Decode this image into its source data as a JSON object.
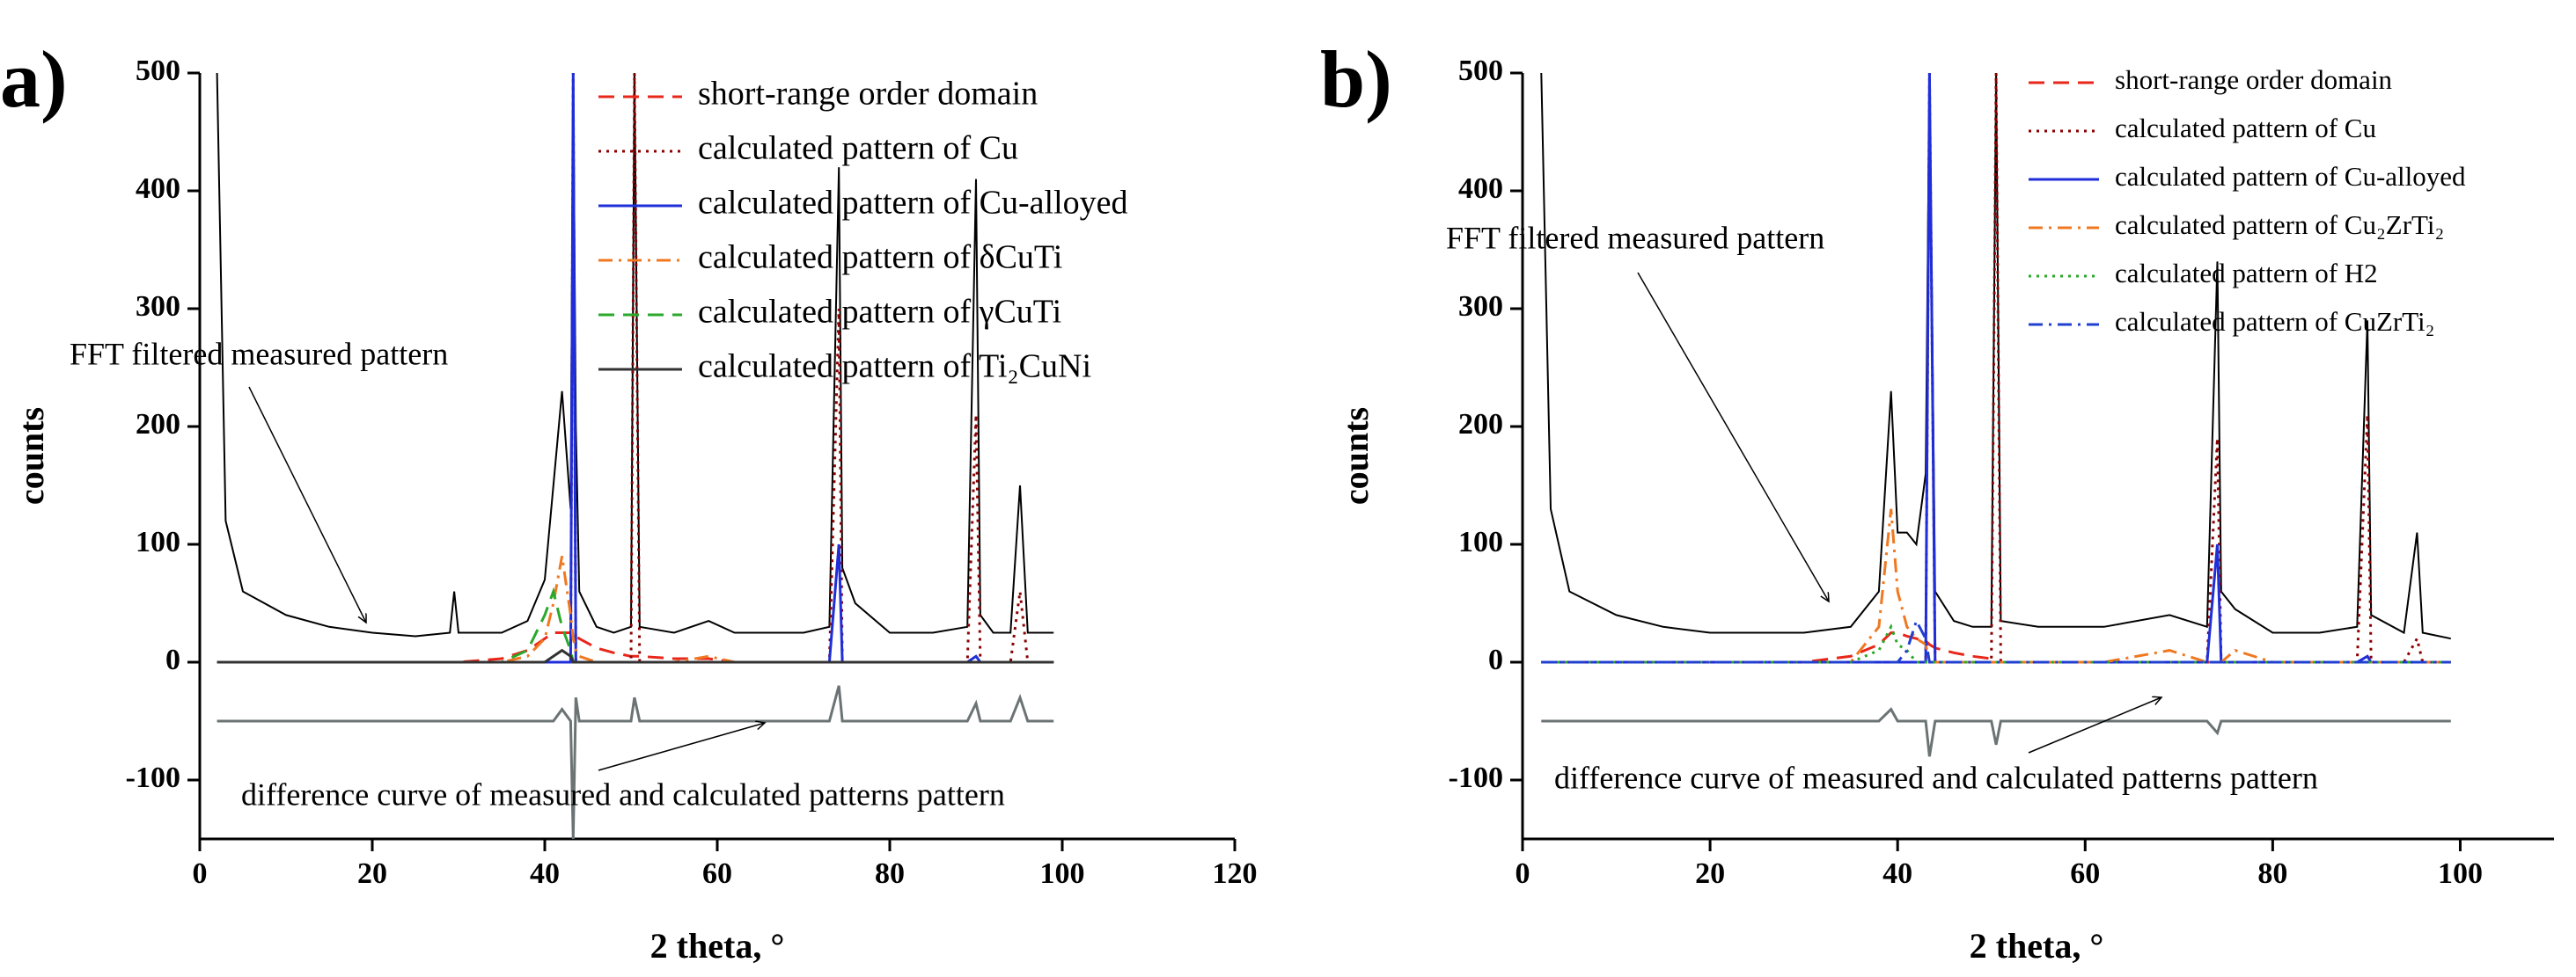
{
  "chart_data": [
    {
      "type": "line",
      "label": "a)",
      "xlabel": "2 theta, °",
      "ylabel": "counts",
      "xlim": [
        0,
        120
      ],
      "ylim": [
        -150,
        500
      ],
      "xticks": [
        0,
        20,
        40,
        60,
        80,
        100,
        120
      ],
      "yticks": [
        -100,
        0,
        100,
        200,
        300,
        400,
        500
      ],
      "legend": "upper right",
      "annotations": [
        "FFT filtered measured pattern",
        "difference curve of measured and calculated patterns pattern"
      ],
      "x": [
        2,
        3,
        5,
        10,
        15,
        20,
        25,
        29,
        29.5,
        30,
        35,
        38,
        40,
        41,
        42,
        43,
        43.3,
        43.6,
        44,
        46,
        48,
        50,
        50.4,
        51,
        55,
        59,
        62,
        65,
        70,
        73,
        74.1,
        74.5,
        76,
        80,
        85,
        89,
        90,
        90.5,
        92,
        94,
        95.1,
        96,
        99
      ],
      "measured": {
        "color": "#000000",
        "values": [
          500,
          120,
          60,
          40,
          30,
          25,
          22,
          25,
          60,
          25,
          25,
          35,
          70,
          150,
          230,
          130,
          500,
          200,
          60,
          30,
          25,
          30,
          500,
          30,
          25,
          35,
          25,
          25,
          25,
          30,
          420,
          80,
          50,
          25,
          25,
          30,
          410,
          40,
          25,
          25,
          150,
          25,
          25
        ]
      },
      "difference": {
        "color": "#6b7374",
        "values": [
          -50,
          -50,
          -50,
          -50,
          -50,
          -50,
          -50,
          -50,
          -50,
          -50,
          -50,
          -50,
          -50,
          -50,
          -40,
          -50,
          -150,
          -30,
          -50,
          -50,
          -50,
          -50,
          -30,
          -50,
          -50,
          -50,
          -50,
          -50,
          -50,
          -50,
          -20,
          -50,
          -50,
          -50,
          -50,
          -50,
          -35,
          -50,
          -50,
          -50,
          -30,
          -50,
          -50
        ]
      },
      "series": [
        {
          "name": "short-range order domain",
          "color": "#e8271a",
          "style": "dashed",
          "values": [
            0,
            0,
            0,
            0,
            0,
            0,
            0,
            0,
            0,
            0,
            3,
            10,
            20,
            25,
            25,
            25,
            25,
            22,
            20,
            12,
            8,
            5,
            5,
            5,
            3,
            3,
            0,
            0,
            0,
            0,
            0,
            0,
            0,
            0,
            0,
            0,
            0,
            0,
            0,
            0,
            0,
            0,
            0
          ]
        },
        {
          "name": "calculated pattern of Cu",
          "color": "#8b0000",
          "style": "dotted",
          "values": [
            0,
            0,
            0,
            0,
            0,
            0,
            0,
            0,
            0,
            0,
            0,
            0,
            0,
            0,
            0,
            0,
            500,
            0,
            0,
            0,
            0,
            0,
            500,
            0,
            0,
            0,
            0,
            0,
            0,
            0,
            300,
            0,
            0,
            0,
            0,
            0,
            210,
            0,
            0,
            0,
            60,
            0,
            0
          ]
        },
        {
          "name": "calculated pattern of Cu-alloyed",
          "color": "#1f2ed8",
          "style": "solid",
          "values": [
            0,
            0,
            0,
            0,
            0,
            0,
            0,
            0,
            0,
            0,
            0,
            0,
            0,
            0,
            0,
            0,
            500,
            0,
            0,
            0,
            0,
            0,
            0,
            0,
            0,
            0,
            0,
            0,
            0,
            0,
            100,
            0,
            0,
            0,
            0,
            0,
            5,
            0,
            0,
            0,
            0,
            0,
            0
          ]
        },
        {
          "name": "calculated pattern of δCuTi",
          "color": "#f07820",
          "style": "dashdot",
          "values": [
            0,
            0,
            0,
            0,
            0,
            0,
            0,
            0,
            0,
            0,
            0,
            5,
            20,
            50,
            90,
            40,
            20,
            10,
            5,
            0,
            0,
            0,
            0,
            0,
            0,
            5,
            0,
            0,
            0,
            0,
            0,
            0,
            0,
            0,
            0,
            0,
            0,
            0,
            0,
            0,
            0,
            0,
            0
          ]
        },
        {
          "name": "calculated pattern of γCuTi",
          "color": "#2aa82a",
          "style": "dashed",
          "values": [
            0,
            0,
            0,
            0,
            0,
            0,
            0,
            0,
            0,
            0,
            0,
            10,
            40,
            60,
            30,
            10,
            0,
            0,
            0,
            0,
            0,
            0,
            0,
            0,
            0,
            0,
            0,
            0,
            0,
            0,
            0,
            0,
            0,
            0,
            0,
            0,
            0,
            0,
            0,
            0,
            0,
            0,
            0
          ]
        },
        {
          "name": "calculated pattern of Ti₂CuNi",
          "color": "#333333",
          "style": "solid",
          "values": [
            0,
            0,
            0,
            0,
            0,
            0,
            0,
            0,
            0,
            0,
            0,
            0,
            0,
            5,
            10,
            5,
            0,
            0,
            0,
            0,
            0,
            0,
            0,
            0,
            0,
            0,
            0,
            0,
            0,
            0,
            0,
            0,
            0,
            0,
            0,
            0,
            0,
            0,
            0,
            0,
            0,
            0,
            0
          ]
        }
      ]
    },
    {
      "type": "line",
      "label": "b)",
      "xlabel": "2 theta, °",
      "ylabel": "counts",
      "xlim": [
        0,
        110
      ],
      "ylim": [
        -150,
        500
      ],
      "xticks": [
        0,
        20,
        40,
        60,
        80,
        100
      ],
      "yticks": [
        -100,
        0,
        100,
        200,
        300,
        400,
        500
      ],
      "legend": "upper right",
      "annotations": [
        "FFT filtered measured pattern",
        "difference curve of measured and calculated patterns pattern"
      ],
      "x": [
        2,
        3,
        5,
        10,
        15,
        20,
        25,
        30,
        35,
        38,
        39.3,
        40,
        41,
        42,
        43,
        43.4,
        44,
        46,
        48,
        50,
        50.5,
        51,
        55,
        62,
        69,
        73,
        74.1,
        74.5,
        76,
        80,
        85,
        89,
        90.1,
        90.5,
        94,
        95.4,
        96,
        99
      ],
      "measured": {
        "color": "#000000",
        "values": [
          500,
          130,
          60,
          40,
          30,
          25,
          25,
          25,
          30,
          60,
          230,
          110,
          110,
          100,
          160,
          500,
          60,
          35,
          30,
          30,
          500,
          35,
          30,
          30,
          40,
          30,
          340,
          60,
          45,
          25,
          25,
          30,
          290,
          40,
          25,
          110,
          25,
          20
        ]
      },
      "difference": {
        "color": "#6b7374",
        "values": [
          -50,
          -50,
          -50,
          -50,
          -50,
          -50,
          -50,
          -50,
          -50,
          -50,
          -40,
          -50,
          -50,
          -50,
          -50,
          -80,
          -50,
          -50,
          -50,
          -50,
          -70,
          -50,
          -50,
          -50,
          -50,
          -50,
          -60,
          -50,
          -50,
          -50,
          -50,
          -50,
          -50,
          -50,
          -50,
          -50,
          -50,
          -50
        ]
      },
      "series": [
        {
          "name": "short-range order domain",
          "color": "#e8271a",
          "style": "dashed",
          "values": [
            0,
            0,
            0,
            0,
            0,
            0,
            0,
            0,
            5,
            15,
            25,
            25,
            22,
            20,
            18,
            15,
            12,
            8,
            5,
            3,
            0,
            0,
            0,
            0,
            0,
            0,
            0,
            0,
            0,
            0,
            0,
            0,
            0,
            0,
            0,
            0,
            0,
            0
          ]
        },
        {
          "name": "calculated pattern of Cu",
          "color": "#8b0000",
          "style": "dotted",
          "values": [
            0,
            0,
            0,
            0,
            0,
            0,
            0,
            0,
            0,
            0,
            0,
            0,
            0,
            0,
            0,
            500,
            0,
            0,
            0,
            0,
            500,
            0,
            0,
            0,
            0,
            0,
            190,
            0,
            0,
            0,
            0,
            0,
            210,
            0,
            0,
            20,
            0,
            0
          ]
        },
        {
          "name": "calculated pattern of Cu-alloyed",
          "color": "#1f2ed8",
          "style": "solid",
          "values": [
            0,
            0,
            0,
            0,
            0,
            0,
            0,
            0,
            0,
            0,
            0,
            0,
            0,
            0,
            0,
            500,
            0,
            0,
            0,
            0,
            0,
            0,
            0,
            0,
            0,
            0,
            100,
            0,
            0,
            0,
            0,
            0,
            5,
            0,
            0,
            0,
            0,
            0
          ]
        },
        {
          "name": "calculated pattern of Cu₂ZrTi₂",
          "color": "#f07820",
          "style": "dashdot",
          "values": [
            0,
            0,
            0,
            0,
            0,
            0,
            0,
            0,
            0,
            30,
            130,
            60,
            30,
            20,
            15,
            0,
            0,
            0,
            0,
            0,
            0,
            0,
            0,
            0,
            10,
            0,
            0,
            0,
            10,
            0,
            0,
            0,
            0,
            0,
            0,
            0,
            0,
            0
          ]
        },
        {
          "name": "calculated pattern of H2",
          "color": "#2aa82a",
          "style": "dotted",
          "values": [
            0,
            0,
            0,
            0,
            0,
            0,
            0,
            0,
            0,
            10,
            30,
            15,
            10,
            0,
            0,
            0,
            0,
            0,
            0,
            0,
            0,
            0,
            0,
            0,
            0,
            0,
            0,
            0,
            0,
            0,
            0,
            0,
            0,
            0,
            0,
            0,
            0,
            0
          ]
        },
        {
          "name": "calculated pattern of CuZrTi₂",
          "color": "#2040d0",
          "style": "dashdot",
          "values": [
            0,
            0,
            0,
            0,
            0,
            0,
            0,
            0,
            0,
            0,
            0,
            0,
            10,
            35,
            20,
            0,
            0,
            0,
            0,
            0,
            0,
            0,
            0,
            0,
            0,
            0,
            0,
            0,
            0,
            0,
            0,
            0,
            0,
            0,
            0,
            0,
            0,
            0
          ]
        }
      ]
    }
  ]
}
